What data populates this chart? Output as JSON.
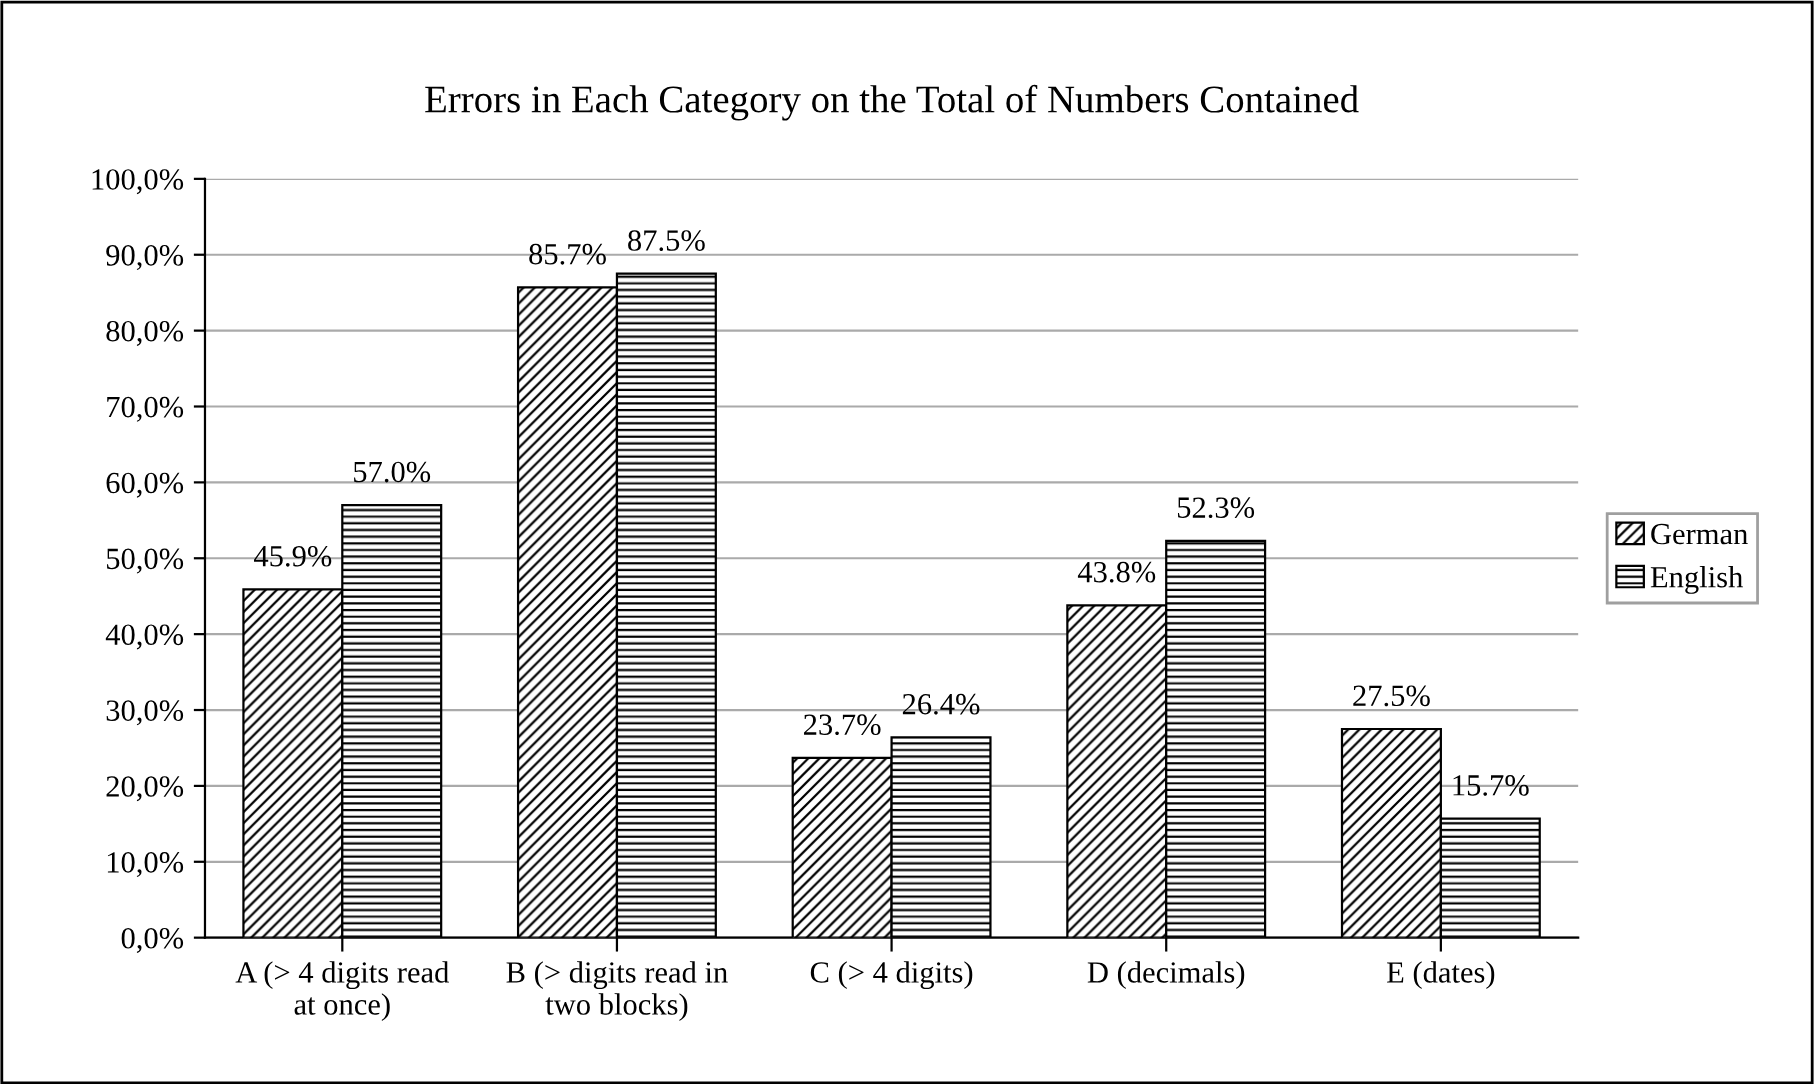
{
  "chart_data": {
    "type": "bar",
    "title": "Errors in Each Category on the Total of Numbers Contained",
    "categories": [
      "A (> 4 digits read\nat once)",
      "B (> digits read in\ntwo blocks)",
      "C (> 4 digits)",
      "D (decimals)",
      "E (dates)"
    ],
    "series": [
      {
        "name": "German",
        "color": "#000000",
        "values": [
          45.9,
          85.7,
          23.7,
          43.8,
          27.5
        ],
        "value_labels": [
          "45.9%",
          "85.7%",
          "23.7%",
          "43.8%",
          "27.5%"
        ]
      },
      {
        "name": "English",
        "color": "#000000",
        "values": [
          57.0,
          87.5,
          26.4,
          52.3,
          15.7
        ],
        "value_labels": [
          "57.0%",
          "87.5%",
          "26.4%",
          "52.3%",
          "15.7%"
        ]
      }
    ],
    "ylim": [
      0,
      100
    ],
    "yticks": [
      {
        "value": 0,
        "label": "0,0%"
      },
      {
        "value": 10,
        "label": "10,0%"
      },
      {
        "value": 20,
        "label": "20,0%"
      },
      {
        "value": 30,
        "label": "30,0%"
      },
      {
        "value": 40,
        "label": "40,0%"
      },
      {
        "value": 50,
        "label": "50,0%"
      },
      {
        "value": 60,
        "label": "60,0%"
      },
      {
        "value": 70,
        "label": "70,0%"
      },
      {
        "value": 80,
        "label": "80,0%"
      },
      {
        "value": 90,
        "label": "90,0%"
      },
      {
        "value": 100,
        "label": "100,0%"
      }
    ],
    "grid": "y",
    "legend": "right"
  }
}
